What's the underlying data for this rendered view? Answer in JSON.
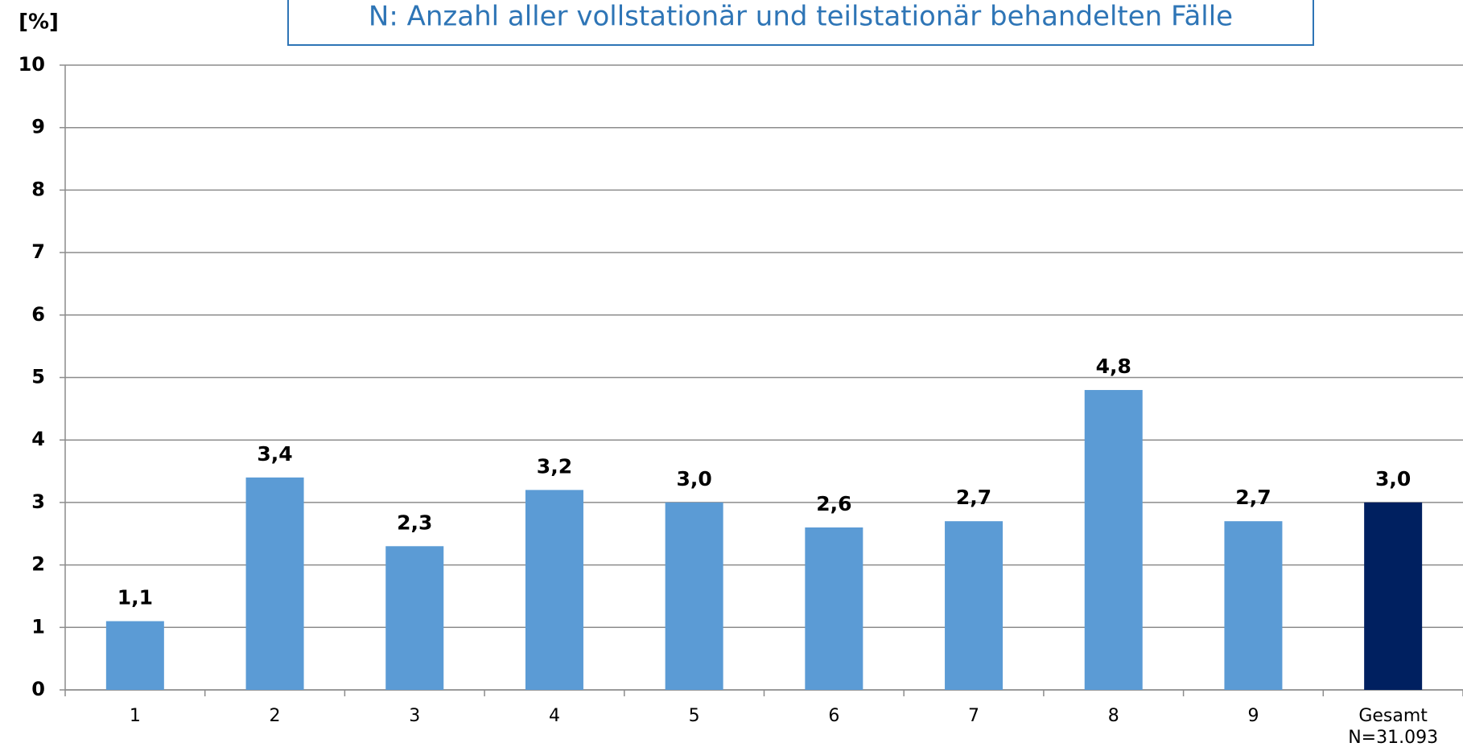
{
  "chart_data": {
    "type": "bar",
    "title": "N: Anzahl aller vollstationär und teilstationär behandelten Fälle",
    "y_axis_label": "[%]",
    "categories": [
      "1",
      "2",
      "3",
      "4",
      "5",
      "6",
      "7",
      "8",
      "9",
      "Gesamt"
    ],
    "total_label": "N=31.093",
    "values": [
      1.1,
      3.4,
      2.3,
      3.2,
      3.0,
      2.6,
      2.7,
      4.8,
      2.7,
      3.0
    ],
    "value_labels": [
      "1,1",
      "3,4",
      "2,3",
      "3,2",
      "3,0",
      "2,6",
      "2,7",
      "4,8",
      "2,7",
      "3,0"
    ],
    "colors": [
      "#5b9bd5",
      "#5b9bd5",
      "#5b9bd5",
      "#5b9bd5",
      "#5b9bd5",
      "#5b9bd5",
      "#5b9bd5",
      "#5b9bd5",
      "#5b9bd5",
      "#002060"
    ],
    "ylim": [
      0,
      10
    ],
    "yticks": [
      0,
      1,
      2,
      3,
      4,
      5,
      6,
      7,
      8,
      9,
      10
    ],
    "grid": true
  }
}
